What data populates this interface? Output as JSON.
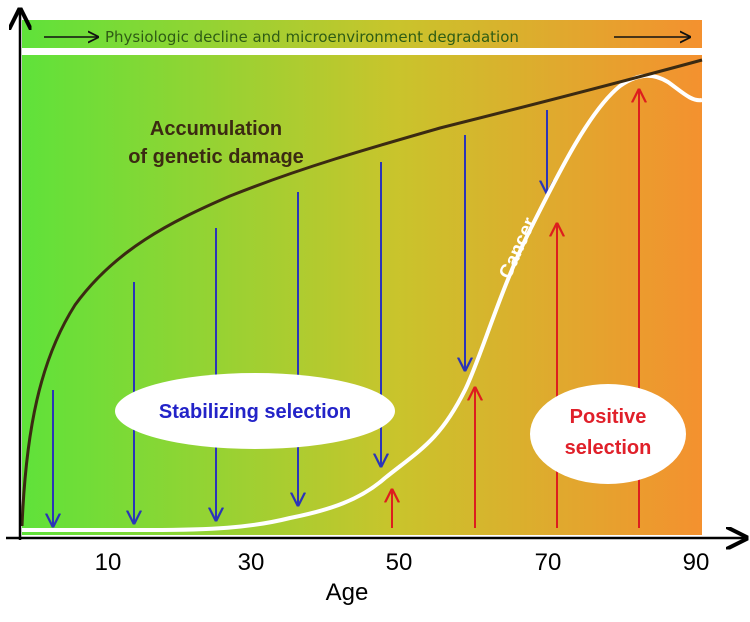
{
  "banner": {
    "text": "Physiologic decline and microenvironment degradation"
  },
  "curves": {
    "damage_label_line1": "Accumulation",
    "damage_label_line2": "of genetic damage",
    "cancer_label": "Cancer"
  },
  "regions": {
    "stabilizing_label": "Stabilizing selection",
    "positive_label_line1": "Positive",
    "positive_label_line2": "selection"
  },
  "axis": {
    "xlabel": "Age",
    "ticks": [
      "10",
      "30",
      "50",
      "70",
      "90"
    ]
  },
  "colors": {
    "gradient_start": "#5fe23a",
    "gradient_mid": "#c9c42c",
    "gradient_end": "#f4912f",
    "damage_curve": "#3b2a12",
    "cancer_curve": "#ffffff",
    "stabilizing_arrow": "#2b35b8",
    "positive_arrow": "#dd1e1e",
    "stabilizing_text": "#2323c8",
    "positive_text": "#e0202a",
    "banner_text": "#2e5c14"
  }
}
